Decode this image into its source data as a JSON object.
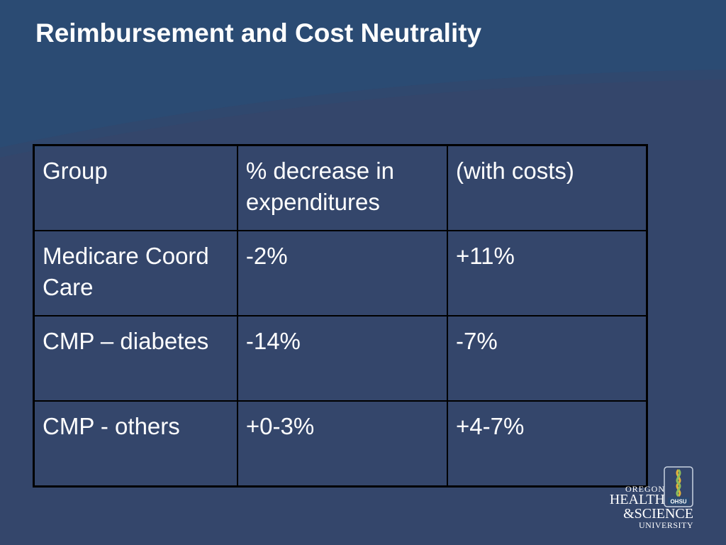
{
  "slide": {
    "title": "Reimbursement and Cost Neutrality"
  },
  "table": {
    "header": [
      "Group",
      "% decrease in expenditures",
      "(with costs)"
    ],
    "rows": [
      [
        "Medicare Coord Care",
        "-2%",
        "+11%"
      ],
      [
        "CMP – diabetes",
        "-14%",
        "-7%"
      ],
      [
        "CMP - others",
        "+0-3%",
        "+4-7%"
      ]
    ]
  },
  "logo": {
    "line1": "OREGON",
    "line2": "HEALTH",
    "line3": "&SCIENCE",
    "line4": "UNIVERSITY",
    "badge": "OHSU"
  },
  "colors": {
    "background": "#34466b",
    "header_band": "#2a4a72",
    "text": "#ffffff",
    "grid": "#000000"
  }
}
